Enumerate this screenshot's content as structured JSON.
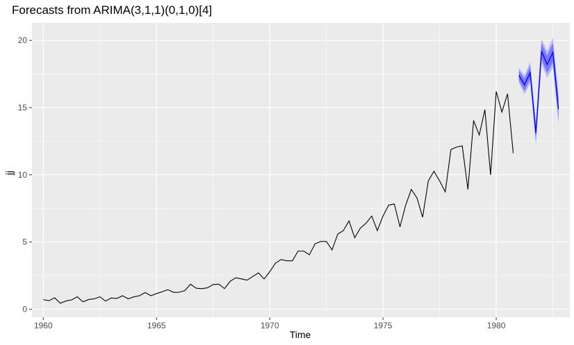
{
  "chart_data": {
    "type": "line",
    "title": "Forecasts from ARIMA(3,1,1)(0,1,0)[4]",
    "xlabel": "Time",
    "ylabel": "jj",
    "xlim": [
      1959.5,
      1983.25
    ],
    "ylim": [
      -0.6,
      21.3
    ],
    "x_ticks": [
      1960,
      1965,
      1970,
      1975,
      1980
    ],
    "y_ticks": [
      0,
      5,
      10,
      15,
      20
    ],
    "grid": true,
    "colors": {
      "panel_background": "#ebebeb",
      "grid": "#ffffff",
      "history_line": "#000000",
      "forecast_line": "#0000ff",
      "interval_95": "#b3b3ff",
      "interval_80": "#7070ff"
    },
    "series": [
      {
        "kind": "history",
        "x_start": 1960.0,
        "x_step": 0.25,
        "values": [
          0.71,
          0.63,
          0.85,
          0.44,
          0.61,
          0.69,
          0.92,
          0.55,
          0.72,
          0.77,
          0.92,
          0.6,
          0.83,
          0.8,
          1.0,
          0.77,
          0.92,
          1.0,
          1.24,
          1.0,
          1.16,
          1.3,
          1.45,
          1.25,
          1.26,
          1.38,
          1.86,
          1.56,
          1.53,
          1.59,
          1.83,
          1.86,
          1.53,
          2.07,
          2.34,
          2.25,
          2.16,
          2.43,
          2.7,
          2.25,
          2.79,
          3.42,
          3.69,
          3.6,
          3.6,
          4.32,
          4.32,
          4.05,
          4.86,
          5.04,
          5.04,
          4.41,
          5.58,
          5.85,
          6.57,
          5.31,
          6.03,
          6.39,
          6.93,
          5.85,
          6.93,
          7.74,
          7.83,
          6.12,
          7.74,
          8.91,
          8.28,
          6.84,
          9.54,
          10.26,
          9.54,
          8.73,
          11.88,
          12.06,
          12.15,
          8.91,
          14.04,
          12.96,
          14.85,
          9.99,
          16.2,
          14.67,
          16.02,
          11.61
        ]
      },
      {
        "kind": "forecast",
        "x_start": 1981.0,
        "x_step": 0.25,
        "values": [
          17.4,
          16.7,
          17.6,
          13.1,
          19.2,
          18.2,
          19.1,
          14.9
        ],
        "lower_80": [
          17.05,
          16.25,
          17.1,
          12.55,
          18.6,
          17.55,
          18.4,
          14.15
        ],
        "upper_80": [
          17.75,
          17.15,
          18.1,
          13.65,
          19.8,
          18.85,
          19.8,
          15.65
        ],
        "lower_95": [
          16.85,
          16.0,
          16.8,
          12.25,
          18.25,
          17.2,
          18.0,
          13.75
        ],
        "upper_95": [
          17.95,
          17.4,
          18.4,
          13.95,
          20.15,
          19.2,
          20.2,
          16.05
        ]
      }
    ]
  }
}
